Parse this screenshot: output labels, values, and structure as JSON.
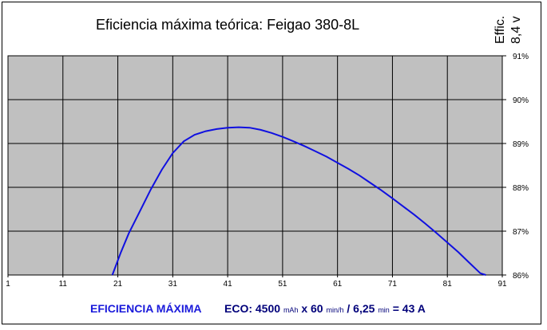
{
  "chart_data": {
    "type": "line",
    "title": "Eficiencia máxima teórica: Feigao 380-8L",
    "side_label_line1": "Effic.",
    "side_label_line2": "8,4 v",
    "x_ticks": [
      "1",
      "11",
      "21",
      "31",
      "41",
      "51",
      "61",
      "71",
      "81",
      "91"
    ],
    "x_range": [
      1,
      91
    ],
    "y_ticks": [
      "86%",
      "87%",
      "88%",
      "89%",
      "90%",
      "91%"
    ],
    "y_range": [
      86,
      91
    ],
    "grid": true,
    "plot_background": "#c0c0c0",
    "series": [
      {
        "name": "EFICIENCIA MÁXIMA",
        "color": "#1010e0",
        "points": [
          [
            20,
            86.0
          ],
          [
            21.5,
            86.5
          ],
          [
            23,
            86.95
          ],
          [
            25,
            87.45
          ],
          [
            27,
            87.95
          ],
          [
            29,
            88.4
          ],
          [
            31,
            88.78
          ],
          [
            33,
            89.05
          ],
          [
            35,
            89.2
          ],
          [
            37,
            89.28
          ],
          [
            39,
            89.33
          ],
          [
            41,
            89.36
          ],
          [
            43,
            89.37
          ],
          [
            45,
            89.36
          ],
          [
            47,
            89.31
          ],
          [
            49,
            89.24
          ],
          [
            51,
            89.15
          ],
          [
            53,
            89.05
          ],
          [
            55,
            88.94
          ],
          [
            57,
            88.82
          ],
          [
            59,
            88.7
          ],
          [
            61,
            88.56
          ],
          [
            63,
            88.42
          ],
          [
            65,
            88.27
          ],
          [
            67,
            88.1
          ],
          [
            69,
            87.93
          ],
          [
            71,
            87.75
          ],
          [
            73,
            87.56
          ],
          [
            75,
            87.37
          ],
          [
            77,
            87.17
          ],
          [
            79,
            86.96
          ],
          [
            81,
            86.74
          ],
          [
            83,
            86.52
          ],
          [
            85,
            86.28
          ],
          [
            87,
            86.04
          ],
          [
            88,
            86.0
          ]
        ]
      }
    ]
  },
  "footer": {
    "legend_label": "EFICIENCIA MÁXIMA",
    "eco_prefix": "ECO: 4500",
    "unit_mah": "mAh",
    "times_60": "x 60",
    "unit_minh": "min/h",
    "divisor": "/ 6,25",
    "unit_min": "min",
    "result": "= 43 A"
  }
}
